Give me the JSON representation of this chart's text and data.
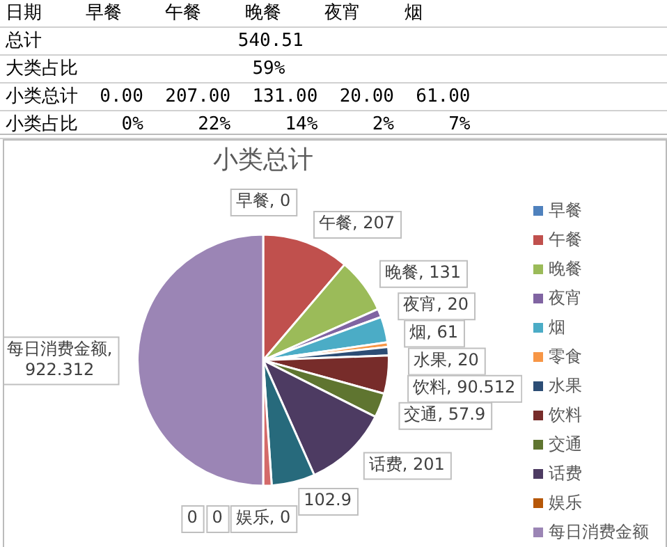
{
  "chart_data": {
    "type": "pie",
    "title": "小类总计",
    "categories": [
      "早餐",
      "午餐",
      "晚餐",
      "夜宵",
      "烟",
      "零食",
      "水果",
      "饮料",
      "交通",
      "话费",
      null,
      null,
      "娱乐",
      null,
      null,
      "每日消费金额"
    ],
    "values": [
      0,
      207,
      131,
      20,
      61,
      11,
      20,
      90.512,
      57.9,
      201,
      102.9,
      20,
      0,
      0,
      0,
      922.312
    ],
    "colors": [
      "#4f81bd",
      "#c0504d",
      "#9bbb59",
      "#8064a2",
      "#4bacc6",
      "#f79646",
      "#2c4d75",
      "#772c2a",
      "#5f7530",
      "#4d3b62",
      "#276a7c",
      "#d46a6a",
      "#b65708",
      "#729aca",
      "#a5bd7a",
      "#9b85b5"
    ],
    "value_labels": [
      "早餐, 0",
      "午餐, 207",
      "晚餐, 131",
      "夜宵, 20",
      "烟, 61",
      null,
      "水果, 20",
      "饮料, 90.512",
      "交通, 57.9",
      "话费, 201",
      "102.9",
      null,
      "娱乐, 0",
      "0",
      "0",
      "每日消费金额, 922.312"
    ],
    "legend": "right",
    "annotations": [
      "日期    早餐    午餐    晚餐    夜宵    烟",
      "总计                  540.51",
      "大类占比                59%",
      "小类总计  0.00  207.00  131.00  20.00  61.00",
      "小类占比    0%     22%     14%     2%     7%"
    ]
  }
}
